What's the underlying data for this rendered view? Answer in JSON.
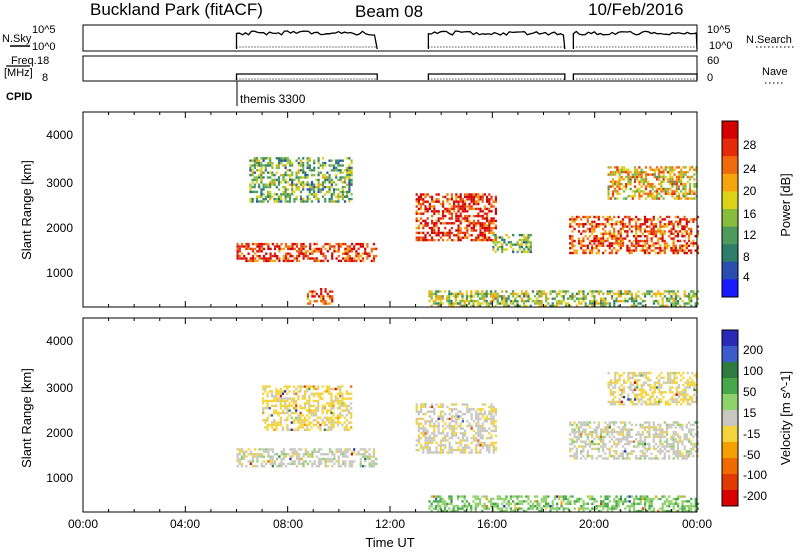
{
  "header": {
    "station": "Buckland Park (fitACF)",
    "beam": "Beam 08",
    "date": "10/Feb/2016"
  },
  "strips": {
    "nsky": {
      "label": "N.Sky",
      "left_ticks": [
        "10^5",
        "10^0"
      ],
      "right_ticks": [
        "10^5",
        "10^0"
      ],
      "right_label": "N.Search"
    },
    "freq": {
      "label_line1": "Freq.",
      "label_line2": "[MHz]",
      "left_ticks": [
        "18",
        "8"
      ],
      "right_ticks": [
        "60",
        "0"
      ],
      "right_label": "Nave"
    },
    "cpid": {
      "label": "CPID",
      "value": "themis 3300"
    }
  },
  "colors": {
    "power_scale": [
      "#1a1aff",
      "#2a4db0",
      "#2e7d6a",
      "#4e9a5c",
      "#86bd3c",
      "#dcd21a",
      "#f5a50e",
      "#ef6a0c",
      "#e52a0a",
      "#d40000"
    ],
    "velocity_scale": [
      "#2a2ab8",
      "#3b5cc9",
      "#2f7a3f",
      "#46a84a",
      "#8fd16a",
      "#c8c8c0",
      "#f3d43a",
      "#f5a000",
      "#f06a00",
      "#e03a00",
      "#d80000"
    ]
  },
  "chart_data": [
    {
      "type": "heatmap",
      "title": "",
      "ylabel": "Slant Range [km]",
      "xlabel": "",
      "ylim": [
        180,
        4500
      ],
      "y_ticks": [
        "4000",
        "3000",
        "2000",
        "1000"
      ],
      "colorbar": {
        "label": "Power [dB]",
        "ticks": [
          "28",
          "24",
          "20",
          "16",
          "12",
          "8",
          "4"
        ],
        "range": [
          0,
          30
        ]
      },
      "x_range_hours": [
        0,
        24
      ],
      "echo_regions": [
        {
          "t_start": "06:00",
          "t_end": "11:30",
          "range_min_km": 1200,
          "range_max_km": 1600,
          "power_db": 26
        },
        {
          "t_start": "06:30",
          "t_end": "10:30",
          "range_min_km": 2500,
          "range_max_km": 3500,
          "power_db": 12
        },
        {
          "t_start": "08:45",
          "t_end": "09:45",
          "range_min_km": 250,
          "range_max_km": 600,
          "power_db": 24
        },
        {
          "t_start": "13:00",
          "t_end": "16:10",
          "range_min_km": 1650,
          "range_max_km": 2700,
          "power_db": 26
        },
        {
          "t_start": "16:00",
          "t_end": "17:30",
          "range_min_km": 1400,
          "range_max_km": 1800,
          "power_db": 12
        },
        {
          "t_start": "19:00",
          "t_end": "24:00",
          "range_min_km": 1350,
          "range_max_km": 2200,
          "power_db": 24
        },
        {
          "t_start": "20:30",
          "t_end": "24:00",
          "range_min_km": 2600,
          "range_max_km": 3300,
          "power_db": 18
        },
        {
          "t_start": "13:30",
          "t_end": "24:00",
          "range_min_km": 180,
          "range_max_km": 550,
          "power_db": 14
        }
      ]
    },
    {
      "type": "heatmap",
      "title": "",
      "ylabel": "Slant Range [km]",
      "xlabel": "Time UT",
      "ylim": [
        180,
        4500
      ],
      "y_ticks": [
        "4000",
        "3000",
        "2000",
        "1000"
      ],
      "x_ticks": [
        "00:00",
        "04:00",
        "08:00",
        "12:00",
        "16:00",
        "20:00",
        "00:00"
      ],
      "colorbar": {
        "label": "Velocity [m s^-1]",
        "ticks": [
          "200",
          "100",
          "50",
          "15",
          "-15",
          "-50",
          "-100",
          "-200"
        ],
        "range": [
          -250,
          250
        ]
      },
      "x_range_hours": [
        0,
        24
      ],
      "echo_regions": [
        {
          "t_start": "06:00",
          "t_end": "11:30",
          "range_min_km": 1200,
          "range_max_km": 1600,
          "velocity": 0
        },
        {
          "t_start": "07:00",
          "t_end": "10:30",
          "range_min_km": 2000,
          "range_max_km": 3000,
          "velocity": -40
        },
        {
          "t_start": "13:00",
          "t_end": "16:10",
          "range_min_km": 1500,
          "range_max_km": 2600,
          "velocity": -10
        },
        {
          "t_start": "19:00",
          "t_end": "24:00",
          "range_min_km": 1350,
          "range_max_km": 2200,
          "velocity": 0
        },
        {
          "t_start": "20:30",
          "t_end": "24:00",
          "range_min_km": 2600,
          "range_max_km": 3300,
          "velocity": -30
        },
        {
          "t_start": "13:30",
          "t_end": "24:00",
          "range_min_km": 180,
          "range_max_km": 550,
          "velocity": 60
        }
      ]
    }
  ]
}
